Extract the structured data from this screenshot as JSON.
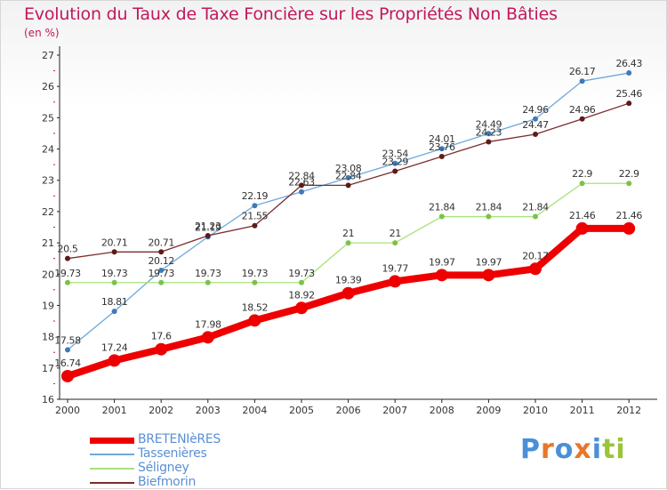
{
  "title": "Evolution du Taux de Taxe Foncière sur les Propriétés Non Bâties",
  "unit_label": "(en %)",
  "brand": {
    "letters": [
      "P",
      "r",
      "o",
      "x",
      "i",
      "t",
      "i"
    ],
    "colors": [
      "#4a8fd8",
      "#e8762b",
      "#4a8fd8",
      "#e8762b",
      "#4a8fd8",
      "#9bc33c",
      "#9bc33c"
    ]
  },
  "chart_data": {
    "type": "line",
    "title": "Evolution du Taux de Taxe Foncière sur les Propriétés Non Bâties",
    "ylabel": "(en %)",
    "xlabel": "",
    "x": [
      "2000",
      "2001",
      "2002",
      "2003",
      "2004",
      "2005",
      "2006",
      "2007",
      "2008",
      "2009",
      "2010",
      "2011",
      "2012"
    ],
    "ylim": [
      16,
      27
    ],
    "yticks": [
      "16",
      "17",
      "18",
      "19",
      "20",
      "21",
      "22",
      "23",
      "24",
      "25",
      "26",
      "27"
    ],
    "grid": false,
    "legend_position": "bottom-left",
    "series": [
      {
        "name": "BRETENIèRES",
        "color": "#ee0000",
        "emphasis": true,
        "values": [
          16.74,
          17.24,
          17.6,
          17.98,
          18.52,
          18.92,
          19.39,
          19.77,
          19.97,
          19.97,
          20.17,
          21.46,
          21.46
        ],
        "labels": [
          "16.74",
          "17.24",
          "17.6",
          "17.98",
          "18.52",
          "18.92",
          "19.39",
          "19.77",
          "19.97",
          "19.97",
          "20.17",
          "21.46",
          "21.46"
        ]
      },
      {
        "name": "Tassenières",
        "color": "#6fa8dc",
        "marker": "#3d7ab8",
        "emphasis": false,
        "values": [
          17.58,
          18.81,
          20.12,
          21.19,
          22.19,
          22.63,
          23.08,
          23.54,
          24.01,
          24.49,
          24.96,
          26.17,
          26.43
        ],
        "labels": [
          "17.58",
          "18.81",
          "20.12",
          "21.19",
          "22.19",
          "22.63",
          "23.08",
          "23.54",
          "24.01",
          "24.49",
          "24.96",
          "26.17",
          "26.43"
        ]
      },
      {
        "name": "Séligney",
        "color": "#a6e37a",
        "marker": "#7cc24a",
        "emphasis": false,
        "values": [
          19.73,
          19.73,
          19.73,
          19.73,
          19.73,
          19.73,
          21.0,
          21.0,
          21.84,
          21.84,
          21.84,
          22.9,
          22.9
        ],
        "labels": [
          "19.73",
          "19.73",
          "19.73",
          "19.73",
          "19.73",
          "19.73",
          "21",
          "21",
          "21.84",
          "21.84",
          "21.84",
          "22.9",
          "22.9"
        ]
      },
      {
        "name": "Biefmorin",
        "color": "#7b2d2d",
        "marker": "#5e1a1a",
        "emphasis": false,
        "values": [
          20.5,
          20.71,
          20.71,
          21.23,
          21.55,
          22.84,
          22.84,
          23.29,
          23.76,
          24.23,
          24.47,
          24.96,
          25.46
        ],
        "labels": [
          "20.5",
          "20.71",
          "20.71",
          "21.23",
          "21.55",
          "22.84",
          "22.84",
          "23.29",
          "23.76",
          "24.23",
          "24.47",
          "24.96",
          "25.46"
        ]
      }
    ]
  }
}
